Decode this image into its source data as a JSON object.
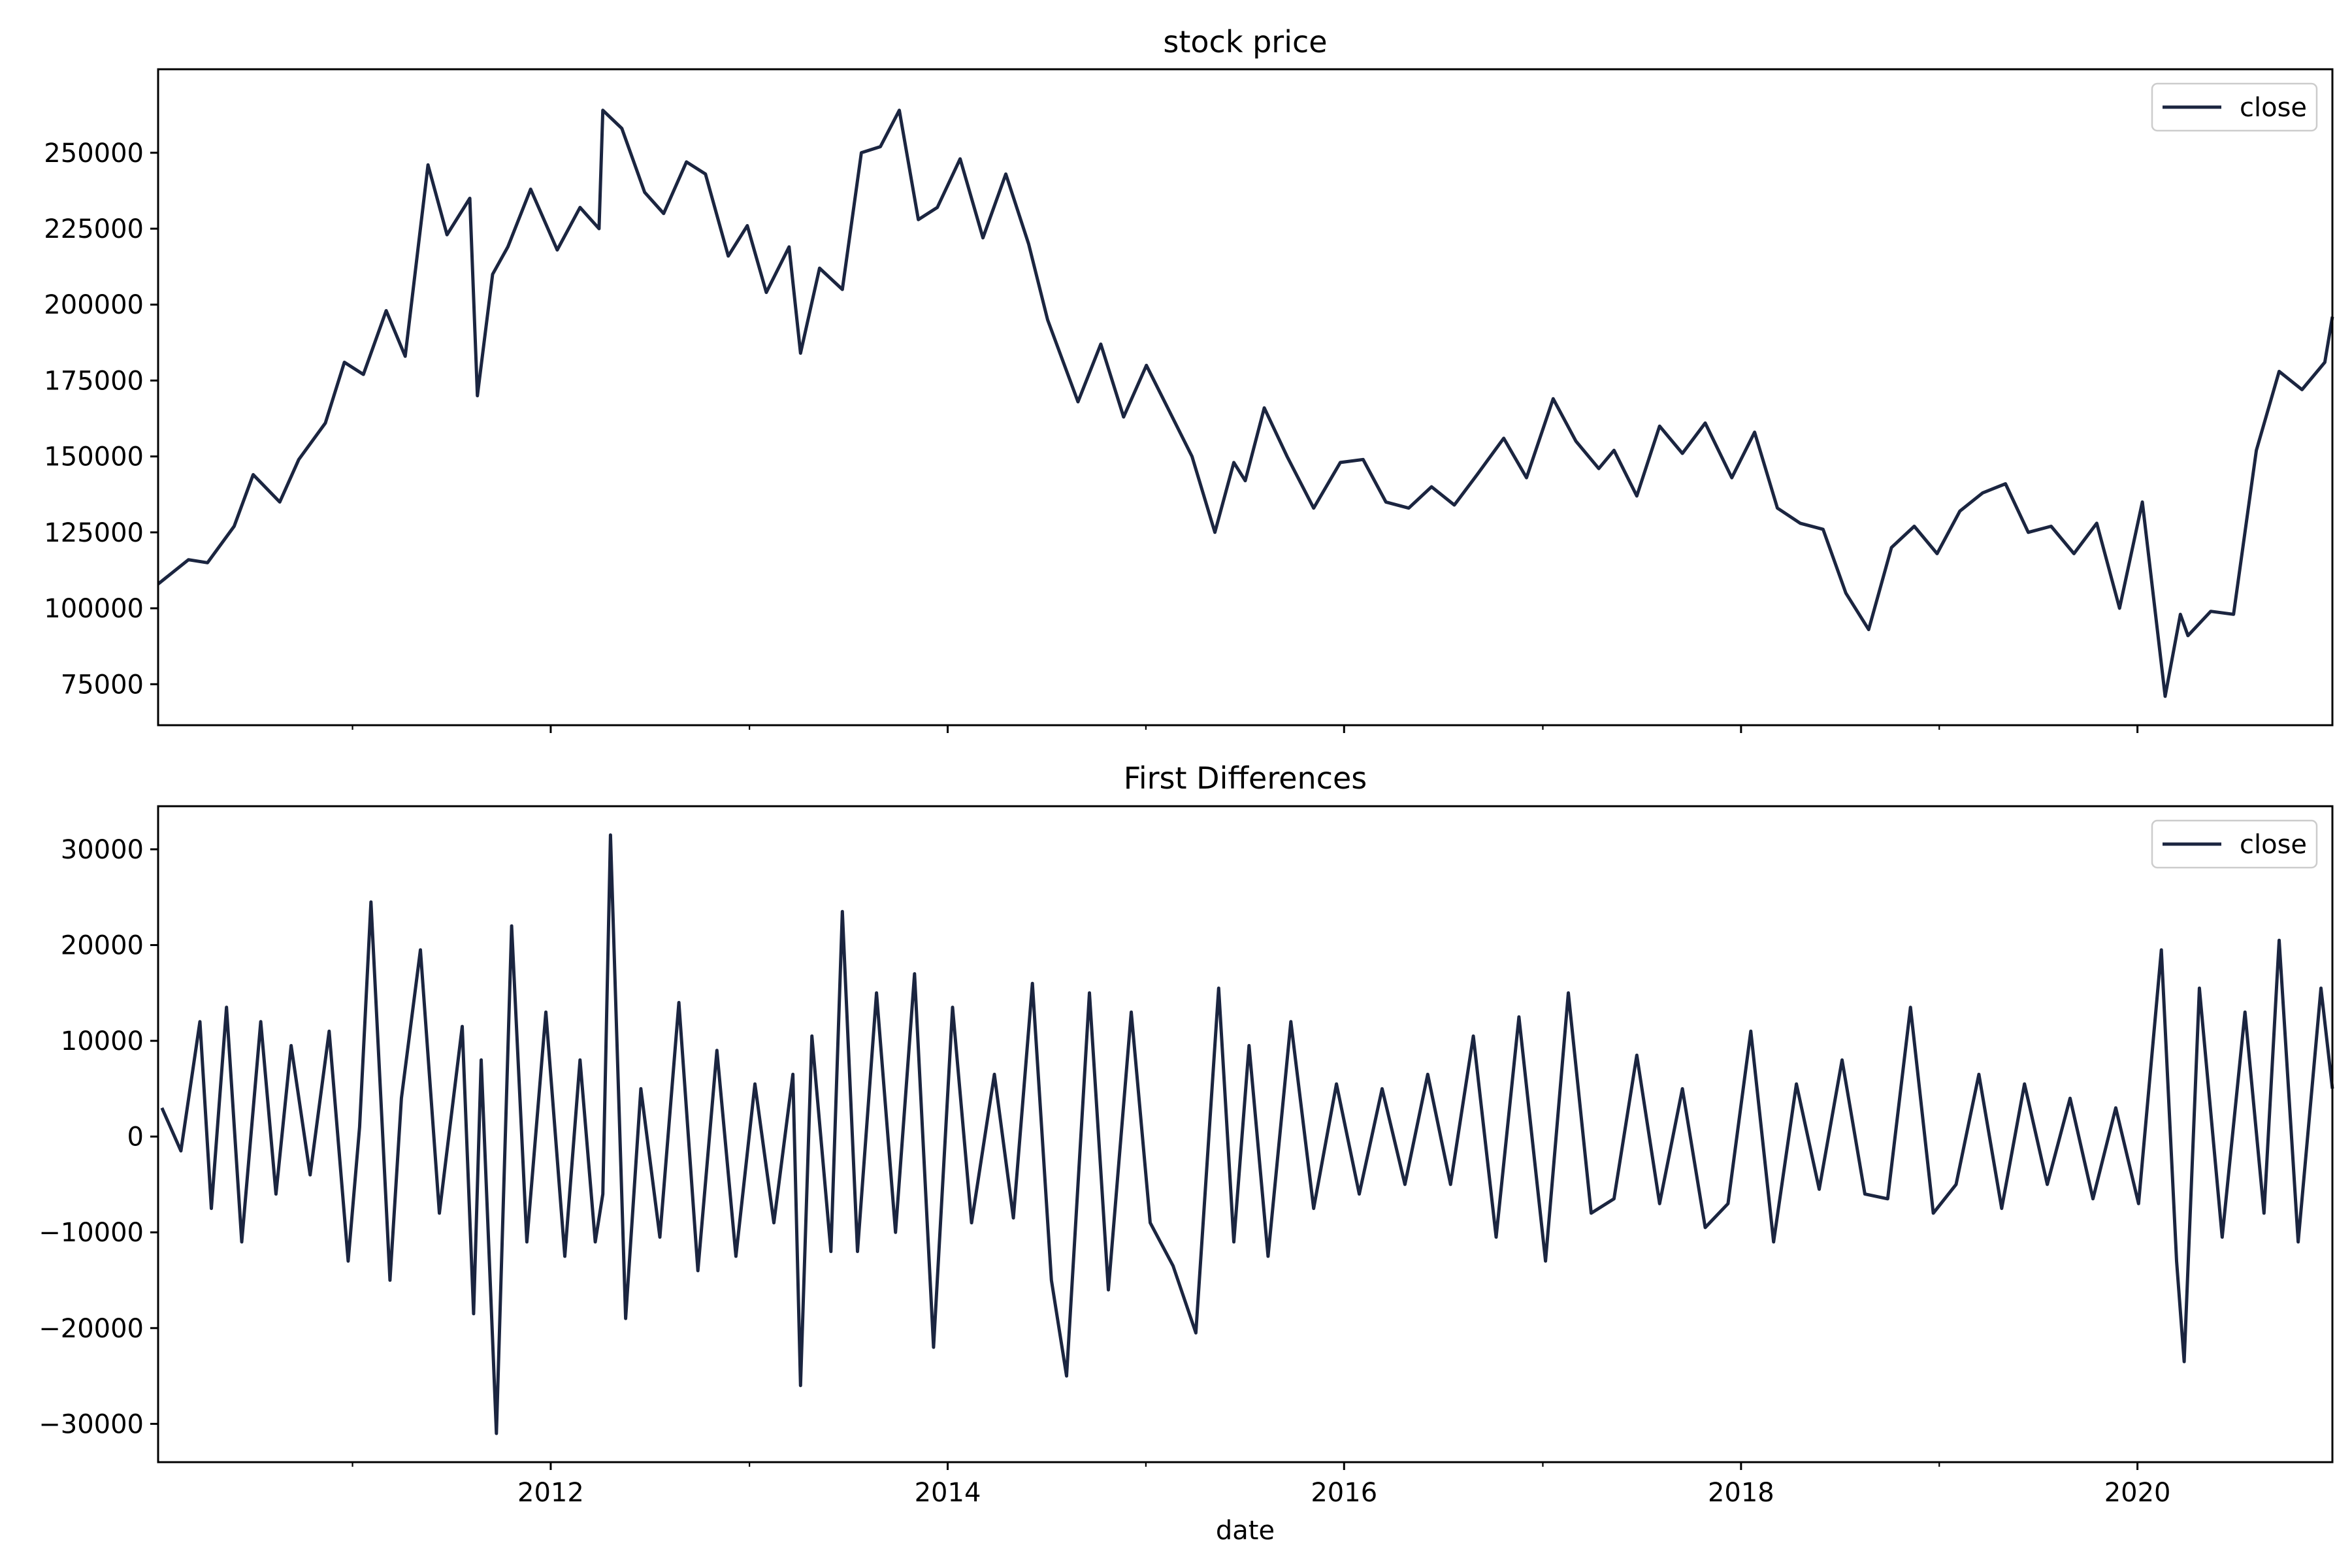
{
  "figure": {
    "xlabel": "date",
    "line_color": "#1b2540",
    "x_ticks": [
      "2012",
      "2014",
      "2016",
      "2018",
      "2020"
    ]
  },
  "chart_data": [
    {
      "type": "line",
      "title": "stock price",
      "xlabel": "",
      "ylabel": "",
      "xlim": [
        "2010-01-08",
        "2020-12-25"
      ],
      "ylim": [
        61500,
        277500
      ],
      "y_ticks": [
        "75000",
        "100000",
        "125000",
        "150000",
        "175000",
        "200000",
        "225000",
        "250000"
      ],
      "legend": {
        "position": "upper right",
        "entries": [
          "close"
        ]
      },
      "grid": false,
      "x_ticks": [
        "2012",
        "2014",
        "2016",
        "2018",
        "2020"
      ],
      "series": [
        {
          "name": "close",
          "dates": [
            "2010-01-08",
            "2010-03-05",
            "2010-04-09",
            "2010-05-28",
            "2010-07-02",
            "2010-08-20",
            "2010-09-24",
            "2010-11-12",
            "2010-12-17",
            "2011-01-21",
            "2011-03-04",
            "2011-04-08",
            "2011-05-20",
            "2011-06-24",
            "2011-08-05",
            "2011-08-19",
            "2011-09-16",
            "2011-10-14",
            "2011-11-25",
            "2012-01-13",
            "2012-02-24",
            "2012-03-30",
            "2012-04-06",
            "2012-05-11",
            "2012-06-22",
            "2012-07-27",
            "2012-09-07",
            "2012-10-12",
            "2012-11-23",
            "2012-12-28",
            "2013-02-01",
            "2013-03-15",
            "2013-04-05",
            "2013-05-10",
            "2013-06-21",
            "2013-07-26",
            "2013-08-30",
            "2013-10-04",
            "2013-11-08",
            "2013-12-13",
            "2014-01-24",
            "2014-03-07",
            "2014-04-18",
            "2014-05-30",
            "2014-07-04",
            "2014-08-29",
            "2014-10-10",
            "2014-11-21",
            "2015-01-02",
            "2015-02-13",
            "2015-03-27",
            "2015-05-08",
            "2015-06-12",
            "2015-07-03",
            "2015-08-07",
            "2015-09-18",
            "2015-11-06",
            "2015-12-25",
            "2016-02-05",
            "2016-03-18",
            "2016-04-29",
            "2016-06-10",
            "2016-07-22",
            "2016-09-02",
            "2016-10-21",
            "2016-12-02",
            "2017-01-20",
            "2017-03-03",
            "2017-04-14",
            "2017-05-12",
            "2017-06-23",
            "2017-08-04",
            "2017-09-15",
            "2017-10-27",
            "2017-12-15",
            "2018-01-26",
            "2018-03-09",
            "2018-04-20",
            "2018-06-01",
            "2018-07-13",
            "2018-08-24",
            "2018-10-05",
            "2018-11-16",
            "2018-12-28",
            "2019-02-08",
            "2019-03-22",
            "2019-05-03",
            "2019-06-14",
            "2019-07-26",
            "2019-09-06",
            "2019-10-18",
            "2019-11-29",
            "2020-01-10",
            "2020-02-21",
            "2020-03-20",
            "2020-04-03",
            "2020-05-15",
            "2020-06-26",
            "2020-08-07",
            "2020-09-18",
            "2020-10-30",
            "2020-12-11",
            "2020-12-25"
          ],
          "values": [
            108000,
            116000,
            115000,
            127000,
            144000,
            135000,
            149000,
            161000,
            181000,
            177000,
            198000,
            183000,
            246000,
            223000,
            235000,
            170000,
            210000,
            219000,
            238000,
            218000,
            232000,
            225000,
            264000,
            258000,
            237000,
            230000,
            247000,
            243000,
            216000,
            226000,
            204000,
            219000,
            184000,
            212000,
            205000,
            250000,
            252000,
            264000,
            228000,
            232000,
            248000,
            222000,
            243000,
            220000,
            195000,
            168000,
            187000,
            163000,
            180000,
            165000,
            150000,
            125000,
            148000,
            142000,
            166000,
            150000,
            133000,
            148000,
            149000,
            135000,
            133000,
            140000,
            134000,
            144000,
            156000,
            143000,
            169000,
            155000,
            146000,
            152000,
            137000,
            160000,
            151000,
            161000,
            143000,
            158000,
            133000,
            128000,
            126000,
            105000,
            93000,
            120000,
            127000,
            118000,
            132000,
            138000,
            141000,
            125000,
            127000,
            118000,
            128000,
            100000,
            135000,
            71000,
            98000,
            91000,
            99000,
            98000,
            152000,
            178000,
            172000,
            181000,
            196000
          ]
        }
      ]
    },
    {
      "type": "line",
      "title": "First Differences",
      "xlabel": "date",
      "ylabel": "",
      "xlim": [
        "2010-01-08",
        "2020-12-25"
      ],
      "ylim": [
        -34000,
        34500
      ],
      "y_ticks": [
        "−30000",
        "−20000",
        "−10000",
        "0",
        "10000",
        "20000",
        "30000"
      ],
      "legend": {
        "position": "upper right",
        "entries": [
          "close"
        ]
      },
      "grid": false,
      "x_ticks": [
        "2012",
        "2014",
        "2016",
        "2018",
        "2020"
      ],
      "series": [
        {
          "name": "close",
          "dates": [
            "2010-01-15",
            "2010-02-19",
            "2010-03-26",
            "2010-04-16",
            "2010-05-14",
            "2010-06-11",
            "2010-07-16",
            "2010-08-13",
            "2010-09-10",
            "2010-10-15",
            "2010-11-19",
            "2010-12-24",
            "2011-01-14",
            "2011-02-04",
            "2011-03-11",
            "2011-04-01",
            "2011-05-06",
            "2011-06-10",
            "2011-07-22",
            "2011-08-12",
            "2011-08-26",
            "2011-09-23",
            "2011-10-21",
            "2011-11-18",
            "2011-12-23",
            "2012-01-27",
            "2012-02-24",
            "2012-03-23",
            "2012-04-06",
            "2012-04-20",
            "2012-05-18",
            "2012-06-15",
            "2012-07-20",
            "2012-08-24",
            "2012-09-28",
            "2012-11-02",
            "2012-12-07",
            "2013-01-11",
            "2013-02-15",
            "2013-03-22",
            "2013-04-05",
            "2013-04-26",
            "2013-05-31",
            "2013-06-21",
            "2013-07-19",
            "2013-08-23",
            "2013-09-27",
            "2013-11-01",
            "2013-12-06",
            "2014-01-10",
            "2014-02-14",
            "2014-03-28",
            "2014-05-02",
            "2014-06-06",
            "2014-07-11",
            "2014-08-08",
            "2014-09-19",
            "2014-10-24",
            "2014-12-05",
            "2015-01-09",
            "2015-02-20",
            "2015-04-03",
            "2015-05-15",
            "2015-06-12",
            "2015-07-10",
            "2015-08-14",
            "2015-09-25",
            "2015-11-06",
            "2015-12-18",
            "2016-01-29",
            "2016-03-11",
            "2016-04-22",
            "2016-06-03",
            "2016-07-15",
            "2016-08-26",
            "2016-10-07",
            "2016-11-18",
            "2017-01-06",
            "2017-02-17",
            "2017-03-31",
            "2017-05-12",
            "2017-06-23",
            "2017-08-04",
            "2017-09-15",
            "2017-10-27",
            "2017-12-08",
            "2018-01-19",
            "2018-03-02",
            "2018-04-13",
            "2018-05-25",
            "2018-07-06",
            "2018-08-17",
            "2018-09-28",
            "2018-11-09",
            "2018-12-21",
            "2019-02-01",
            "2019-03-15",
            "2019-04-26",
            "2019-06-07",
            "2019-07-19",
            "2019-08-30",
            "2019-10-11",
            "2019-11-22",
            "2020-01-03",
            "2020-02-14",
            "2020-03-13",
            "2020-03-27",
            "2020-04-24",
            "2020-06-05",
            "2020-07-17",
            "2020-08-21",
            "2020-09-18",
            "2020-10-23",
            "2020-12-04",
            "2020-12-25"
          ],
          "values": [
            3000,
            -1500,
            12000,
            -7500,
            13500,
            -11000,
            12000,
            -6000,
            9500,
            -4000,
            11000,
            -13000,
            1000,
            24500,
            -15000,
            4000,
            19500,
            -8000,
            11500,
            -18500,
            8000,
            -31000,
            22000,
            -11000,
            13000,
            -12500,
            8000,
            -11000,
            -6000,
            31500,
            -19000,
            5000,
            -10500,
            14000,
            -14000,
            9000,
            -12500,
            5500,
            -9000,
            6500,
            -26000,
            10500,
            -12000,
            23500,
            -12000,
            15000,
            -10000,
            17000,
            -22000,
            13500,
            -9000,
            6500,
            -8500,
            16000,
            -15000,
            -25000,
            15000,
            -16000,
            13000,
            -9000,
            -13500,
            -20500,
            15500,
            -11000,
            9500,
            -12500,
            12000,
            -7500,
            5500,
            -6000,
            5000,
            -5000,
            6500,
            -5000,
            10500,
            -10500,
            12500,
            -13000,
            15000,
            -8000,
            -6500,
            8500,
            -7000,
            5000,
            -9500,
            -7000,
            11000,
            -11000,
            5500,
            -5500,
            8000,
            -6000,
            -6500,
            13500,
            -8000,
            -5000,
            6500,
            -7500,
            5500,
            -5000,
            4000,
            -6500,
            3000,
            -7000,
            19500,
            -13000,
            -23500,
            15500,
            -10500,
            13000,
            -8000,
            20500,
            -11000,
            15500,
            5000
          ]
        }
      ]
    }
  ]
}
